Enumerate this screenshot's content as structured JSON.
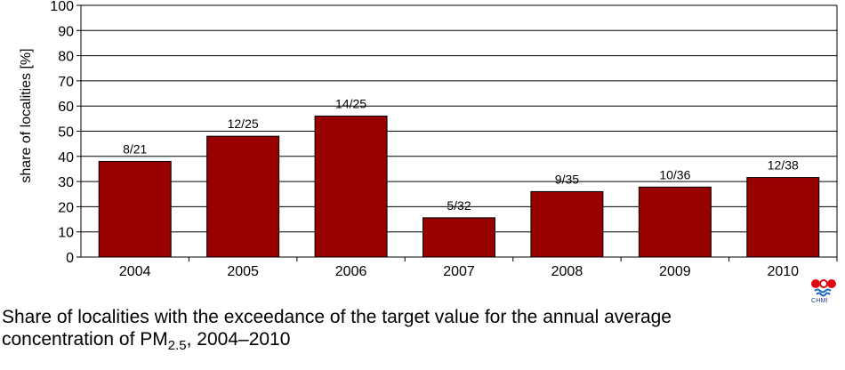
{
  "chart_data": {
    "type": "bar",
    "categories": [
      "2004",
      "2005",
      "2006",
      "2007",
      "2008",
      "2009",
      "2010"
    ],
    "values": [
      38,
      48,
      56,
      15.6,
      26,
      27.8,
      31.6
    ],
    "data_labels": [
      "8/21",
      "12/25",
      "14/25",
      "5/32",
      "9/35",
      "10/36",
      "12/38"
    ],
    "title": "",
    "xlabel": "",
    "ylabel": "share of localities [%]",
    "ylim": [
      0,
      100
    ],
    "yticks": [
      "0",
      "10",
      "20",
      "30",
      "40",
      "50",
      "60",
      "70",
      "80",
      "90",
      "100"
    ],
    "grid": true,
    "bar_color": "#990000",
    "grid_color": "#000000"
  },
  "caption": {
    "line1": "Share of localities with the exceedance of the target value for the annual average",
    "line2_prefix": "concentration of PM",
    "line2_sub": "2.5",
    "line2_suffix": ", 2004–2010"
  },
  "logo": {
    "text": "CHMI",
    "colors": [
      "#e30613",
      "#1a66c9"
    ]
  }
}
